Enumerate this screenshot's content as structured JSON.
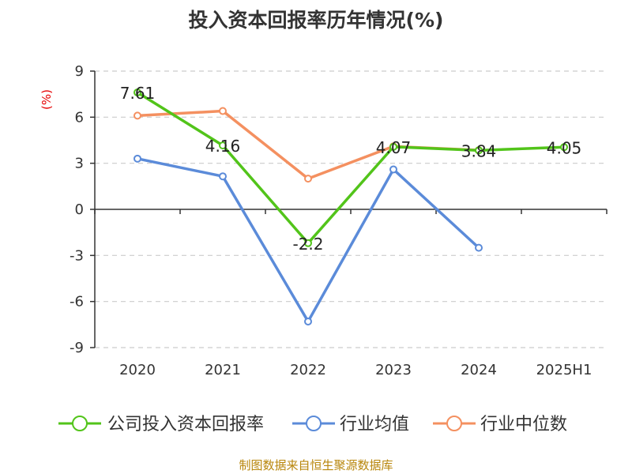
{
  "chart_data": {
    "type": "line",
    "title": "投入资本回报率历年情况(%)",
    "ylabel": "(%)",
    "categories": [
      "2020",
      "2021",
      "2022",
      "2023",
      "2024",
      "2025H1"
    ],
    "ylim": [
      -9,
      9
    ],
    "yticks": [
      9,
      6,
      3,
      0,
      -3,
      -6,
      -9
    ],
    "grid": true,
    "legend_position": "bottom",
    "series": [
      {
        "name": "公司投入资本回报率",
        "color": "#52c41a",
        "values": [
          7.61,
          4.16,
          -2.2,
          4.07,
          3.84,
          4.05
        ],
        "labels": [
          "7.61",
          "4.16",
          "-2.2",
          "4.07",
          "3.84",
          "4.05"
        ]
      },
      {
        "name": "行业均值",
        "color": "#5b8bd9",
        "values": [
          3.3,
          2.15,
          -7.3,
          2.6,
          -2.5,
          null
        ]
      },
      {
        "name": "行业中位数",
        "color": "#f49060",
        "values": [
          6.1,
          6.4,
          2.0,
          4.1,
          3.85,
          null
        ]
      }
    ]
  },
  "source": "制图数据来自恒生聚源数据库"
}
